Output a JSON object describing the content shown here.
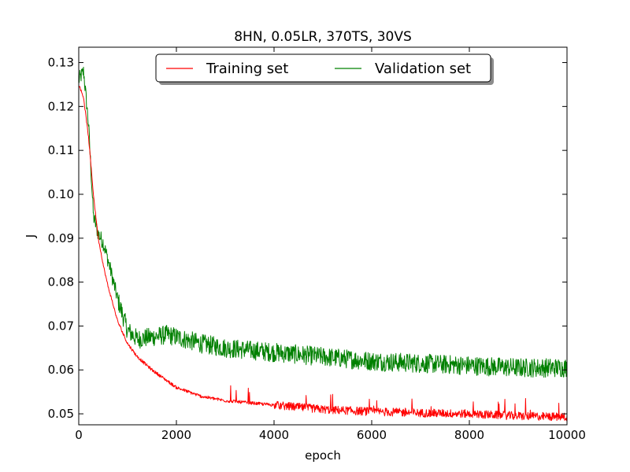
{
  "chart_data": {
    "type": "line",
    "title": "8HN, 0.05LR, 370TS, 30VS",
    "xlabel": "epoch",
    "ylabel": "J",
    "xlim": [
      0,
      10000
    ],
    "ylim": [
      0.0475,
      0.1335
    ],
    "x_ticks": [
      0,
      2000,
      4000,
      6000,
      8000,
      10000
    ],
    "x_tick_labels": [
      "0",
      "2000",
      "4000",
      "6000",
      "8000",
      "10000"
    ],
    "y_ticks": [
      0.05,
      0.06,
      0.07,
      0.08,
      0.09,
      0.1,
      0.11,
      0.12,
      0.13
    ],
    "y_tick_labels": [
      "0.05",
      "0.06",
      "0.07",
      "0.08",
      "0.09",
      "0.10",
      "0.11",
      "0.12",
      "0.13"
    ],
    "grid": false,
    "legend_position": "top-center",
    "series": [
      {
        "name": "Training set",
        "color": "#ff0000",
        "noise": 0.0006,
        "x": [
          0,
          100,
          200,
          300,
          400,
          500,
          600,
          800,
          1000,
          1200,
          1500,
          2000,
          2500,
          3000,
          4000,
          5000,
          6000,
          7000,
          8000,
          9000,
          10000
        ],
        "y": [
          0.125,
          0.122,
          0.113,
          0.1,
          0.09,
          0.084,
          0.079,
          0.071,
          0.066,
          0.063,
          0.06,
          0.056,
          0.054,
          0.053,
          0.052,
          0.051,
          0.0505,
          0.0502,
          0.05,
          0.0495,
          0.0493
        ]
      },
      {
        "name": "Validation set",
        "color": "#008000",
        "noise": 0.0022,
        "x": [
          0,
          100,
          200,
          300,
          400,
          500,
          600,
          800,
          1000,
          1200,
          1500,
          1800,
          2000,
          2500,
          3000,
          4000,
          5000,
          6000,
          7000,
          8000,
          9000,
          10000
        ],
        "y": [
          0.126,
          0.128,
          0.116,
          0.095,
          0.091,
          0.089,
          0.085,
          0.076,
          0.069,
          0.067,
          0.0675,
          0.068,
          0.0675,
          0.066,
          0.065,
          0.064,
          0.063,
          0.062,
          0.0615,
          0.061,
          0.0605,
          0.0605
        ]
      }
    ]
  }
}
